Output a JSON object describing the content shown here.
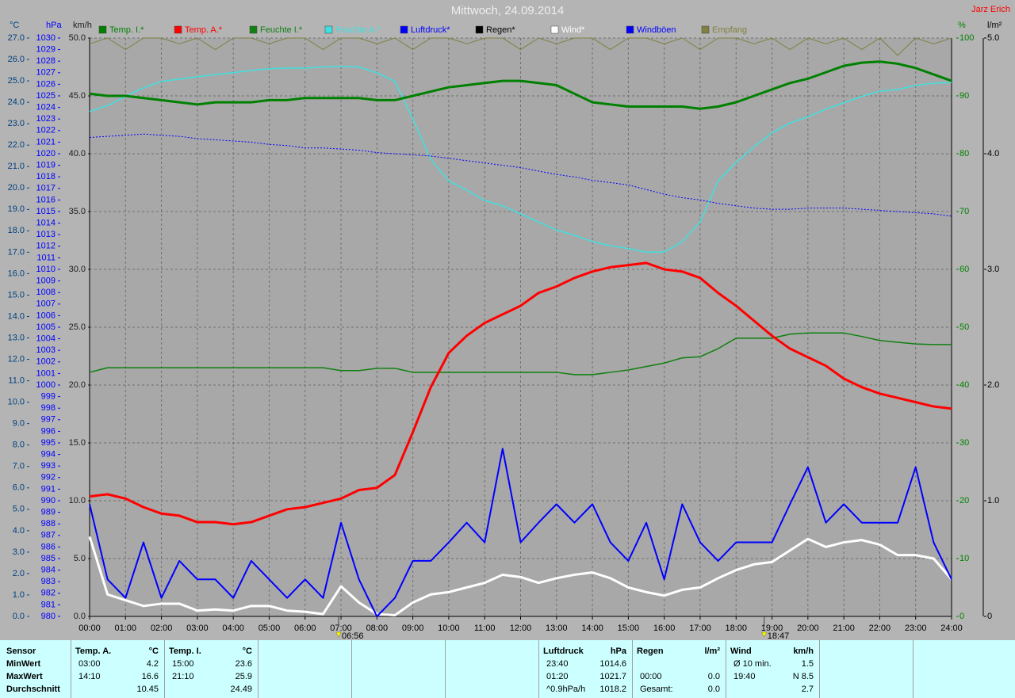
{
  "chart_data": {
    "type": "line",
    "title": "Mittwoch, 24.09.2014",
    "author": "Jarz Erich",
    "x": [
      0,
      0.5,
      1,
      1.5,
      2,
      2.5,
      3,
      3.5,
      4,
      4.5,
      5,
      5.5,
      6,
      6.5,
      7,
      7.5,
      8,
      8.5,
      9,
      9.5,
      10,
      10.5,
      11,
      11.5,
      12,
      12.5,
      13,
      13.5,
      14,
      14.5,
      15,
      15.5,
      16,
      16.5,
      17,
      17.5,
      18,
      18.5,
      19,
      19.5,
      20,
      20.5,
      21,
      21.5,
      22,
      22.5,
      23,
      23.5,
      24
    ],
    "xlim": [
      0,
      24
    ],
    "xticks": [
      {
        "value": 0,
        "label": "00:00"
      },
      {
        "value": 1,
        "label": "01:00"
      },
      {
        "value": 2,
        "label": "02:00"
      },
      {
        "value": 3,
        "label": "03:00"
      },
      {
        "value": 4,
        "label": "04:00"
      },
      {
        "value": 5,
        "label": "05:00"
      },
      {
        "value": 6,
        "label": "06:00"
      },
      {
        "value": 7,
        "label": "07:00"
      },
      {
        "value": 8,
        "label": "08:00"
      },
      {
        "value": 9,
        "label": "09:00"
      },
      {
        "value": 10,
        "label": "10:00"
      },
      {
        "value": 11,
        "label": "11:00"
      },
      {
        "value": 12,
        "label": "12:00"
      },
      {
        "value": 13,
        "label": "13:00"
      },
      {
        "value": 14,
        "label": "14:00"
      },
      {
        "value": 15,
        "label": "15:00"
      },
      {
        "value": 16,
        "label": "16:00"
      },
      {
        "value": 17,
        "label": "17:00"
      },
      {
        "value": 18,
        "label": "18:00"
      },
      {
        "value": 19,
        "label": "19:00"
      },
      {
        "value": 20,
        "label": "20:00"
      },
      {
        "value": 21,
        "label": "21:00"
      },
      {
        "value": 22,
        "label": "22:00"
      },
      {
        "value": 23,
        "label": "23:00"
      },
      {
        "value": 24,
        "label": "24:00"
      }
    ],
    "grid": true,
    "legend": "top",
    "axes": {
      "temp": {
        "label": "°C",
        "color": "#004080",
        "lim": [
          0,
          27
        ],
        "ticks": [
          {
            "value": 0,
            "label": "0.0"
          },
          {
            "value": 1,
            "label": "1.0"
          },
          {
            "value": 2,
            "label": "2.0"
          },
          {
            "value": 3,
            "label": "3.0"
          },
          {
            "value": 4,
            "label": "4.0"
          },
          {
            "value": 5,
            "label": "5.0"
          },
          {
            "value": 6,
            "label": "6.0"
          },
          {
            "value": 7,
            "label": "7.0"
          },
          {
            "value": 8,
            "label": "8.0"
          },
          {
            "value": 9,
            "label": "9.0"
          },
          {
            "value": 10,
            "label": "10.0"
          },
          {
            "value": 11,
            "label": "11.0"
          },
          {
            "value": 12,
            "label": "12.0"
          },
          {
            "value": 13,
            "label": "13.0"
          },
          {
            "value": 14,
            "label": "14.0"
          },
          {
            "value": 15,
            "label": "15.0"
          },
          {
            "value": 16,
            "label": "16.0"
          },
          {
            "value": 17,
            "label": "17.0"
          },
          {
            "value": 18,
            "label": "18.0"
          },
          {
            "value": 19,
            "label": "19.0"
          },
          {
            "value": 20,
            "label": "20.0"
          },
          {
            "value": 21,
            "label": "21.0"
          },
          {
            "value": 22,
            "label": "22.0"
          },
          {
            "value": 23,
            "label": "23.0"
          },
          {
            "value": 24,
            "label": "24.0"
          },
          {
            "value": 25,
            "label": "25.0"
          },
          {
            "value": 26,
            "label": "26.0"
          },
          {
            "value": 27,
            "label": "27.0"
          }
        ]
      },
      "pressure": {
        "label": "hPa",
        "color": "#0000ff",
        "lim": [
          980,
          1030
        ],
        "ticks": [
          980,
          981,
          982,
          983,
          984,
          985,
          986,
          987,
          988,
          989,
          990,
          991,
          992,
          993,
          994,
          995,
          996,
          997,
          998,
          999,
          1000,
          1001,
          1002,
          1003,
          1004,
          1005,
          1006,
          1007,
          1008,
          1009,
          1010,
          1011,
          1012,
          1013,
          1014,
          1015,
          1016,
          1017,
          1018,
          1019,
          1020,
          1021,
          1022,
          1023,
          1024,
          1025,
          1026,
          1027,
          1028,
          1029,
          1030
        ]
      },
      "wind": {
        "label": "km/h",
        "color": "#202020",
        "lim": [
          0,
          50
        ],
        "ticks": [
          {
            "value": 0,
            "label": "0.0"
          },
          {
            "value": 5,
            "label": "5.0"
          },
          {
            "value": 10,
            "label": "10.0"
          },
          {
            "value": 15,
            "label": "15.0"
          },
          {
            "value": 20,
            "label": "20.0"
          },
          {
            "value": 25,
            "label": "25.0"
          },
          {
            "value": 30,
            "label": "30.0"
          },
          {
            "value": 35,
            "label": "35.0"
          },
          {
            "value": 40,
            "label": "40.0"
          },
          {
            "value": 45,
            "label": "45.0"
          },
          {
            "value": 50,
            "label": "50.0"
          }
        ]
      },
      "humidity": {
        "label": "%",
        "color": "#008000",
        "lim": [
          0,
          100
        ],
        "ticks": [
          0,
          10,
          20,
          30,
          40,
          50,
          60,
          70,
          80,
          90,
          100
        ]
      },
      "rain": {
        "label": "l/m²",
        "color": "#000000",
        "lim": [
          0,
          5
        ],
        "ticks": [
          0,
          {
            "value": 1,
            "label": "1.0"
          },
          {
            "value": 2,
            "label": "2.0"
          },
          {
            "value": 3,
            "label": "3.0"
          },
          {
            "value": 4,
            "label": "4.0"
          },
          {
            "value": 5,
            "label": "5.0"
          }
        ]
      }
    },
    "series": [
      {
        "name": "Temp. I.*",
        "color": "#008000",
        "axis": "temp",
        "values": [
          24.4,
          24.3,
          24.3,
          24.2,
          24.1,
          24.0,
          23.9,
          24.0,
          24.0,
          24.0,
          24.1,
          24.1,
          24.2,
          24.2,
          24.2,
          24.2,
          24.1,
          24.1,
          24.3,
          24.5,
          24.7,
          24.8,
          24.9,
          25.0,
          25.0,
          24.9,
          24.8,
          24.4,
          24.0,
          23.9,
          23.8,
          23.8,
          23.8,
          23.8,
          23.7,
          23.8,
          24.0,
          24.3,
          24.6,
          24.9,
          25.1,
          25.4,
          25.7,
          25.85,
          25.9,
          25.8,
          25.6,
          25.3,
          25.0
        ]
      },
      {
        "name": "Temp. A.*",
        "color": "#ff0000",
        "axis": "temp",
        "values": [
          5.6,
          5.7,
          5.5,
          5.1,
          4.8,
          4.7,
          4.4,
          4.4,
          4.3,
          4.4,
          4.7,
          5.0,
          5.1,
          5.3,
          5.5,
          5.9,
          6.0,
          6.6,
          8.6,
          10.7,
          12.3,
          13.1,
          13.7,
          14.1,
          14.5,
          15.1,
          15.4,
          15.8,
          16.1,
          16.3,
          16.4,
          16.5,
          16.2,
          16.1,
          15.8,
          15.1,
          14.5,
          13.8,
          13.1,
          12.5,
          12.1,
          11.7,
          11.1,
          10.7,
          10.4,
          10.2,
          10.0,
          9.8,
          9.7
        ]
      },
      {
        "name": "Feuchte I.*",
        "color": "#108010",
        "axis": "humidity",
        "values": [
          42.2,
          43.0,
          43.0,
          43.0,
          43.0,
          43.0,
          43.0,
          43.0,
          43.0,
          43.0,
          43.0,
          43.0,
          43.0,
          43.0,
          42.5,
          42.5,
          42.9,
          42.9,
          42.2,
          42.2,
          42.2,
          42.2,
          42.2,
          42.2,
          42.2,
          42.2,
          42.2,
          41.8,
          41.8,
          42.2,
          42.6,
          43.2,
          43.8,
          44.7,
          44.9,
          46.3,
          48.1,
          48.1,
          48.1,
          48.8,
          49.0,
          49.0,
          49.0,
          48.4,
          47.7,
          47.4,
          47.1,
          47.0,
          47.0
        ]
      },
      {
        "name": "Feuchte A.*",
        "color": "#40e0e0",
        "axis": "humidity",
        "values": [
          87.3,
          88.3,
          89.9,
          91.4,
          92.5,
          92.9,
          93.3,
          93.7,
          94.0,
          94.4,
          94.7,
          94.8,
          94.8,
          95.0,
          95.1,
          95.0,
          94.0,
          92.5,
          86.0,
          79.0,
          75.3,
          73.7,
          71.9,
          71.0,
          69.6,
          68.2,
          66.8,
          65.9,
          64.8,
          64.1,
          63.6,
          63.0,
          63.0,
          64.8,
          68.2,
          75.3,
          78.5,
          81.2,
          83.6,
          85.3,
          86.4,
          87.7,
          88.8,
          89.9,
          90.8,
          91.1,
          91.8,
          92.2,
          92.3
        ]
      },
      {
        "name": "Luftdruck*",
        "color": "#0000ff",
        "axis": "pressure",
        "line_style": "dotted",
        "values": [
          1021.4,
          1021.5,
          1021.6,
          1021.7,
          1021.6,
          1021.5,
          1021.3,
          1021.2,
          1021.1,
          1021.0,
          1020.8,
          1020.7,
          1020.5,
          1020.5,
          1020.4,
          1020.3,
          1020.1,
          1020.0,
          1019.9,
          1019.8,
          1019.6,
          1019.4,
          1019.2,
          1019.0,
          1018.8,
          1018.5,
          1018.2,
          1018.0,
          1017.7,
          1017.5,
          1017.3,
          1016.9,
          1016.5,
          1016.2,
          1016.0,
          1015.7,
          1015.5,
          1015.3,
          1015.2,
          1015.2,
          1015.3,
          1015.3,
          1015.3,
          1015.2,
          1015.1,
          1015.0,
          1014.9,
          1014.8,
          1014.6
        ]
      },
      {
        "name": "Regen*",
        "color": "#000000",
        "axis": "rain",
        "values": [
          0,
          0,
          0,
          0,
          0,
          0,
          0,
          0,
          0,
          0,
          0,
          0,
          0,
          0,
          0,
          0,
          0,
          0,
          0,
          0,
          0,
          0,
          0,
          0,
          0,
          0,
          0,
          0,
          0,
          0,
          0,
          0,
          0,
          0,
          0,
          0,
          0,
          0,
          0,
          0,
          0,
          0,
          0,
          0,
          0,
          0,
          0,
          0,
          0
        ]
      },
      {
        "name": "Wind*",
        "color": "#ffffff",
        "axis": "wind",
        "values": [
          6.9,
          1.9,
          1.4,
          0.9,
          1.1,
          1.1,
          0.5,
          0.6,
          0.5,
          0.9,
          0.9,
          0.5,
          0.4,
          0.2,
          2.6,
          1.2,
          0.2,
          0.1,
          1.2,
          1.9,
          2.1,
          2.5,
          2.9,
          3.6,
          3.4,
          2.9,
          3.3,
          3.6,
          3.8,
          3.3,
          2.5,
          2.1,
          1.8,
          2.3,
          2.5,
          3.3,
          4.0,
          4.5,
          4.7,
          5.7,
          6.7,
          6.0,
          6.4,
          6.6,
          6.2,
          5.3,
          5.3,
          5.0,
          3.2
        ]
      },
      {
        "name": "Windböen",
        "color": "#0000ff",
        "axis": "wind",
        "values": [
          9.7,
          3.2,
          1.6,
          6.4,
          1.6,
          4.8,
          3.2,
          3.2,
          1.6,
          4.8,
          3.2,
          1.6,
          3.2,
          1.6,
          8.1,
          3.2,
          0.0,
          1.6,
          4.8,
          4.8,
          6.4,
          8.1,
          6.4,
          14.5,
          6.4,
          8.1,
          9.7,
          8.1,
          9.7,
          6.4,
          4.8,
          8.1,
          3.2,
          9.7,
          6.4,
          4.8,
          6.4,
          6.4,
          6.4,
          9.7,
          12.9,
          8.1,
          9.7,
          8.1,
          8.1,
          8.1,
          12.9,
          6.4,
          3.2
        ]
      },
      {
        "name": "Empfang",
        "color": "#808040",
        "axis": "humidity",
        "values": [
          99,
          100,
          98,
          100,
          100,
          99,
          100,
          98,
          100,
          100,
          99,
          100,
          100,
          98,
          100,
          100,
          99,
          100,
          98,
          100,
          100,
          99,
          100,
          100,
          98,
          100,
          99,
          100,
          100,
          98,
          100,
          100,
          99,
          100,
          98,
          100,
          100,
          99,
          100,
          98,
          100,
          99,
          100,
          98,
          100,
          97,
          100,
          99,
          100
        ]
      }
    ],
    "annotations": [
      {
        "x": 6.9333,
        "label": "06:56"
      },
      {
        "x": 18.7833,
        "label": "18:47"
      }
    ]
  },
  "table": {
    "row_labels": {
      "header": "Sensor",
      "rows": [
        "MinWert",
        "MaxWert",
        "Durchschnitt"
      ]
    },
    "blocks": [
      {
        "header": [
          "Temp. A.",
          "°C"
        ],
        "rows": [
          {
            "time": "03:00",
            "value": "4.2"
          },
          {
            "time": "14:10",
            "value": "16.6"
          },
          {
            "value": "10.45"
          }
        ]
      },
      {
        "header": [
          "Temp. I.",
          "°C"
        ],
        "rows": [
          {
            "time": "15:00",
            "value": "23.6"
          },
          {
            "time": "21:10",
            "value": "25.9"
          },
          {
            "value": "24.49"
          }
        ]
      },
      {
        "header": [
          "Luftdruck",
          "hPa"
        ],
        "rows": [
          {
            "time": "23:40",
            "value": "1014.6"
          },
          {
            "time": "01:20",
            "value": "1021.7"
          },
          {
            "time": "^0.9hPa/h",
            "value": "1018.2"
          }
        ]
      },
      {
        "header": [
          "Regen",
          "l/m²"
        ],
        "rows": [
          null,
          {
            "time": "00:00",
            "value": "0.0"
          },
          {
            "time": "Gesamt:",
            "value": "0.0"
          }
        ]
      },
      {
        "header": [
          "Wind",
          "km/h"
        ],
        "rows": [
          {
            "time": "Ø 10 min.",
            "value": "1.5"
          },
          {
            "time": "19:40",
            "value": "N 8.5"
          },
          {
            "value": "2.7"
          }
        ]
      }
    ]
  }
}
